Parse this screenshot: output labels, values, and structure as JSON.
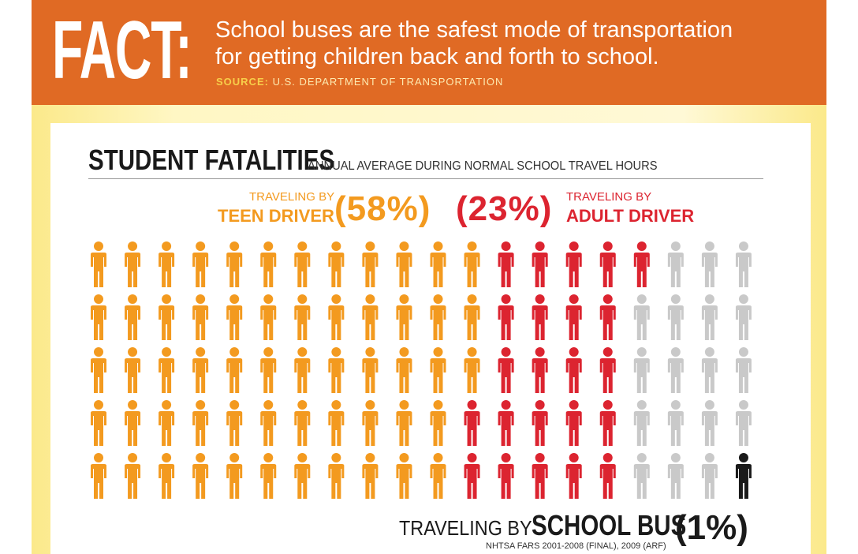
{
  "header": {
    "fact_word": "FACT:",
    "fact_text_line1": "School buses are the safest mode of transportation",
    "fact_text_line2": "for getting children back and forth to school.",
    "source_label": "SOURCE:",
    "source_text": "U.S. DEPARTMENT OF TRANSPORTATION"
  },
  "colors": {
    "header_orange": "#e06a24",
    "teen": "#f39a1f",
    "adult": "#dc2430",
    "other": "#c9c9c9",
    "bus": "#1a1a1a"
  },
  "chart_data": {
    "type": "pictograph",
    "title": "STUDENT FATALITIES",
    "subtitle": "ANNUAL AVERAGE DURING NORMAL SCHOOL TRAVEL HOURS",
    "total_icons": 100,
    "layout": "20 columns x 5 rows",
    "series": [
      {
        "name": "TEEN DRIVER",
        "prefix": "TRAVELING BY",
        "percent_label": "(58%)",
        "value": 58,
        "color": "#f39a1f"
      },
      {
        "name": "ADULT DRIVER",
        "prefix": "TRAVELING BY",
        "percent_label": "(23%)",
        "value": 23,
        "color": "#dc2430"
      },
      {
        "name": "",
        "value": 18,
        "color": "#c9c9c9"
      },
      {
        "name": "SCHOOL BUS",
        "prefix": "TRAVELING BY",
        "percent_label": "(1%)",
        "value": 1,
        "color": "#1a1a1a"
      }
    ],
    "footnote": "NHTSA FARS 2001-2008 (FINAL), 2009 (ARF)"
  }
}
